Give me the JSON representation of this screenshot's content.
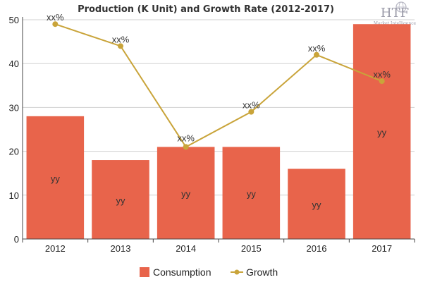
{
  "chart_data": {
    "type": "bar",
    "title": "Production (K Unit) and Growth Rate (2012-2017)",
    "categories": [
      "2012",
      "2013",
      "2014",
      "2015",
      "2016",
      "2017"
    ],
    "ylim": [
      0,
      50
    ],
    "yticks": [
      0,
      10,
      20,
      30,
      40,
      50
    ],
    "grid": true,
    "legend_position": "bottom",
    "series": [
      {
        "name": "Consumption",
        "type": "bar",
        "color": "#e8644b",
        "values": [
          28,
          18,
          21,
          21,
          16,
          49
        ],
        "data_labels": [
          "yy",
          "yy",
          "yy",
          "yy",
          "yy",
          "yy"
        ]
      },
      {
        "name": "Growth",
        "type": "line",
        "color": "#c9a43a",
        "values": [
          49,
          44,
          21,
          29,
          42,
          36
        ],
        "data_labels": [
          "xx%",
          "xx%",
          "xx%",
          "xx%",
          "xx%",
          "xx%"
        ]
      }
    ]
  },
  "logo": {
    "main": "HTF",
    "tagline": "Market Intelligence"
  }
}
